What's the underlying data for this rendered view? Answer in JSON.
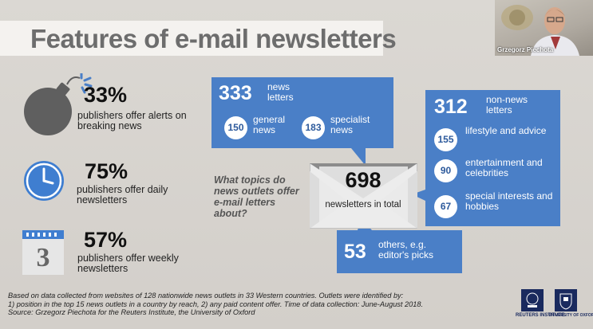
{
  "title": "Features of e-mail newsletters",
  "video": {
    "caption": "Grzegorz Piechota"
  },
  "stats": [
    {
      "value": "33%",
      "text": "publishers offer alerts on breaking news",
      "icon": "bomb-icon"
    },
    {
      "value": "75%",
      "text": "publishers offer daily newsletters",
      "icon": "clock-icon"
    },
    {
      "value": "57%",
      "text": "publishers offer weekly newsletters",
      "icon": "calendar-icon",
      "calendar_day": "3"
    }
  ],
  "question": "What topics do news outlets offer e-mail letters about?",
  "center": {
    "value": "698",
    "label": "newsletters in total"
  },
  "news": {
    "value": "333",
    "label": "news letters",
    "items": [
      {
        "value": "150",
        "label": "general news"
      },
      {
        "value": "183",
        "label": "specialist news"
      }
    ]
  },
  "non_news": {
    "value": "312",
    "label": "non-news letters",
    "items": [
      {
        "value": "155",
        "label": "lifestyle and advice"
      },
      {
        "value": "90",
        "label": "entertainment and celebrities"
      },
      {
        "value": "67",
        "label": "special interests and hobbies"
      }
    ]
  },
  "others": {
    "value": "53",
    "label": "others, e.g. editor's picks"
  },
  "footnote": [
    "Based on data collected from websites of 128 nationwide news outlets in 33 Western countries. Outlets were identified by:",
    "1) position in the top 15 news outlets in a country by reach, 2) any paid content offer. Time of data collection: June-August 2018.",
    "Source: Grzegorz Piechota for the Reuters Institute, the University of Oxford"
  ],
  "logos": [
    {
      "name": "REUTERS INSTITUTE"
    },
    {
      "name": "UNIVERSITY OF OXFORD"
    }
  ],
  "colors": {
    "accent": "#4a7fc7",
    "background": "#d7d3ce",
    "title_band": "#f4f2ef"
  }
}
